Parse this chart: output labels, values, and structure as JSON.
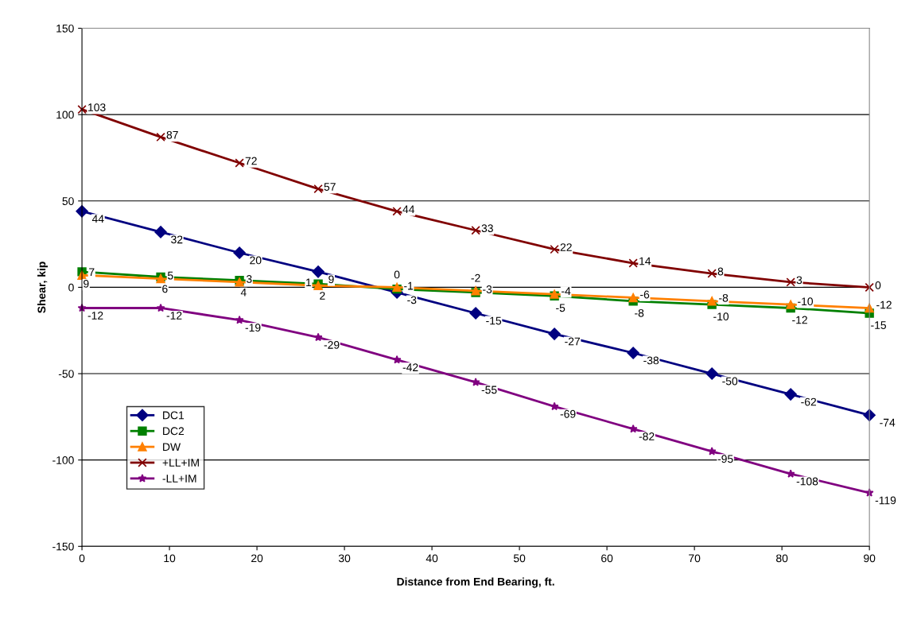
{
  "chart_data": {
    "type": "line",
    "xlabel": "Distance from End Bearing, ft.",
    "ylabel": "Shear, kip",
    "x": [
      0,
      9,
      18,
      27,
      36,
      45,
      54,
      63,
      72,
      81,
      90
    ],
    "xlim": [
      0,
      90
    ],
    "xticks": [
      0,
      10,
      20,
      30,
      40,
      50,
      60,
      70,
      80,
      90
    ],
    "ylim": [
      -150,
      150
    ],
    "yticks": [
      -150,
      -100,
      -50,
      0,
      50,
      100,
      150
    ],
    "grid": "y",
    "legend": "bottom left",
    "data_labels": true,
    "series": [
      {
        "name": "DC1",
        "color": "#000080",
        "marker": "diamond",
        "values": [
          44,
          32,
          20,
          9,
          -3,
          -15,
          -27,
          -38,
          -50,
          -62,
          -74
        ]
      },
      {
        "name": "DC2",
        "color": "#008000",
        "marker": "square",
        "values": [
          9,
          6,
          4,
          2,
          -1,
          -3,
          -5,
          -8,
          -10,
          -12,
          -15
        ]
      },
      {
        "name": "DW",
        "color": "#ff8000",
        "marker": "triangle",
        "values": [
          7,
          5,
          3,
          1,
          0,
          -2,
          -4,
          -6,
          -8,
          -10,
          -12
        ]
      },
      {
        "name": "+LL+IM",
        "color": "#800000",
        "marker": "cross",
        "values": [
          103,
          87,
          72,
          57,
          44,
          33,
          22,
          14,
          8,
          3,
          0
        ]
      },
      {
        "name": "-LL+IM",
        "color": "#800080",
        "marker": "star",
        "values": [
          -12,
          -12,
          -19,
          -29,
          -42,
          -55,
          -69,
          -82,
          -95,
          -108,
          -119
        ]
      }
    ]
  }
}
